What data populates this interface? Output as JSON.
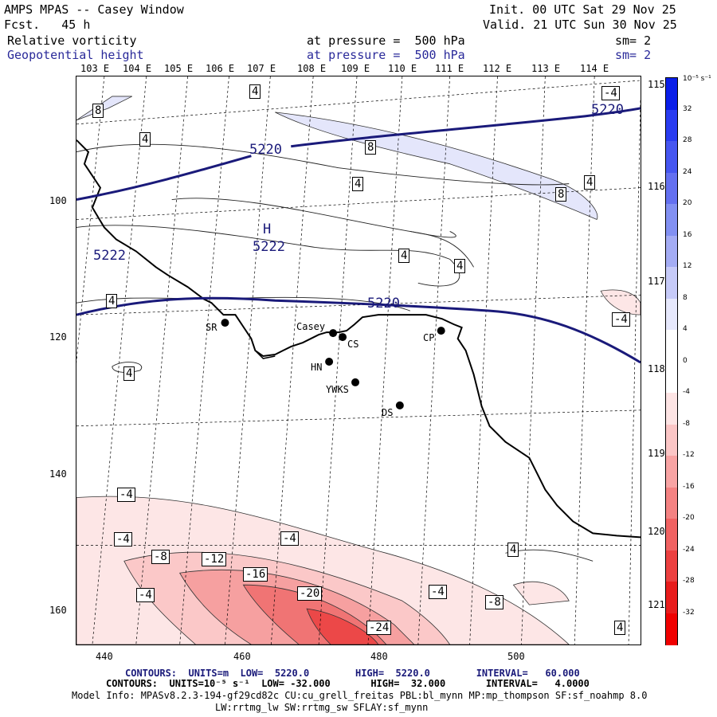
{
  "header": {
    "title": "AMPS MPAS -- Casey Window",
    "fcst": "Fcst.   45 h",
    "field1": "Relative vorticity",
    "field2": "Geopotential height",
    "init": "Init. 00 UTC Sat 29 Nov 25",
    "valid": "Valid. 21 UTC Sun 30 Nov 25",
    "level1": "at pressure =  500 hPa",
    "level2": "at pressure =  500 hPa",
    "sm1": "sm= 2",
    "sm2": "sm= 2"
  },
  "top_axis_labels": [
    "103 E",
    "104 E",
    "105 E",
    "106 E",
    "107 E",
    "108 E",
    "109 E",
    "110 E",
    "111 E",
    "112 E",
    "113 E",
    "114 E"
  ],
  "right_axis_labels": [
    "115 E",
    "116 E",
    "117 E",
    "118 E",
    "119 E",
    "120 E",
    "121 E"
  ],
  "left_axis_labels": [
    "100",
    "120",
    "140",
    "160"
  ],
  "bottom_axis_labels": [
    "440",
    "460",
    "480",
    "500"
  ],
  "stations": [
    {
      "id": "SR",
      "label": "SR"
    },
    {
      "id": "Casey",
      "label": "Casey"
    },
    {
      "id": "CS",
      "label": "CS"
    },
    {
      "id": "HN",
      "label": "HN"
    },
    {
      "id": "YWKS",
      "label": "YWKS"
    },
    {
      "id": "DS",
      "label": "DS"
    },
    {
      "id": "CP",
      "label": "CP"
    }
  ],
  "height_labels": {
    "h_symbol": "H",
    "h_value": "5222",
    "l_value": "5222",
    "c1": "5220",
    "c2": "5220",
    "c3": "5220"
  },
  "vort_labels": [
    "8",
    "-4",
    "4",
    "8",
    "4",
    "8",
    "4",
    "4",
    "4",
    "4",
    "4",
    "-4",
    "-4",
    "-4",
    "-4",
    "-8",
    "-12",
    "-16",
    "-20",
    "-24",
    "-4",
    "-4",
    "-8",
    "4",
    "4",
    "4"
  ],
  "colorbar": {
    "units": "10⁻⁵ s⁻¹",
    "ticks": [
      "32",
      "28",
      "24",
      "20",
      "16",
      "12",
      "8",
      "4",
      "0",
      "-4",
      "-8",
      "-12",
      "-16",
      "-20",
      "-24",
      "-28",
      "-32"
    ],
    "colors": [
      "#0a1ee8",
      "#2a3cf0",
      "#4656f0",
      "#6470f0",
      "#8290f2",
      "#a4acf4",
      "#c6caf8",
      "#e6e8fc",
      "#ffffff",
      "#ffffff",
      "#fde4e4",
      "#fbc6c6",
      "#f8a4a4",
      "#f48282",
      "#f06262",
      "#ec4040",
      "#e81c1c",
      "#f00000"
    ]
  },
  "footer": {
    "line1": "CONTOURS:  UNITS=m  LOW=  5220.0        HIGH=  5220.0        INTERVAL=   60.000",
    "line2": "CONTOURS:  UNITS=10⁻⁵ s⁻¹  LOW= -32.000       HIGH=  32.000       INTERVAL=   4.0000",
    "line3": "Model Info: MPASv8.2.3-194-gf29cd82c CU:cu_grell_freitas PBL:bl_mynn MP:mp_thompson SF:sf_noahmp 8.0",
    "line4": "LW:rrtmg_lw SW:rrtmg_sw SFLAY:sf_mynn"
  }
}
